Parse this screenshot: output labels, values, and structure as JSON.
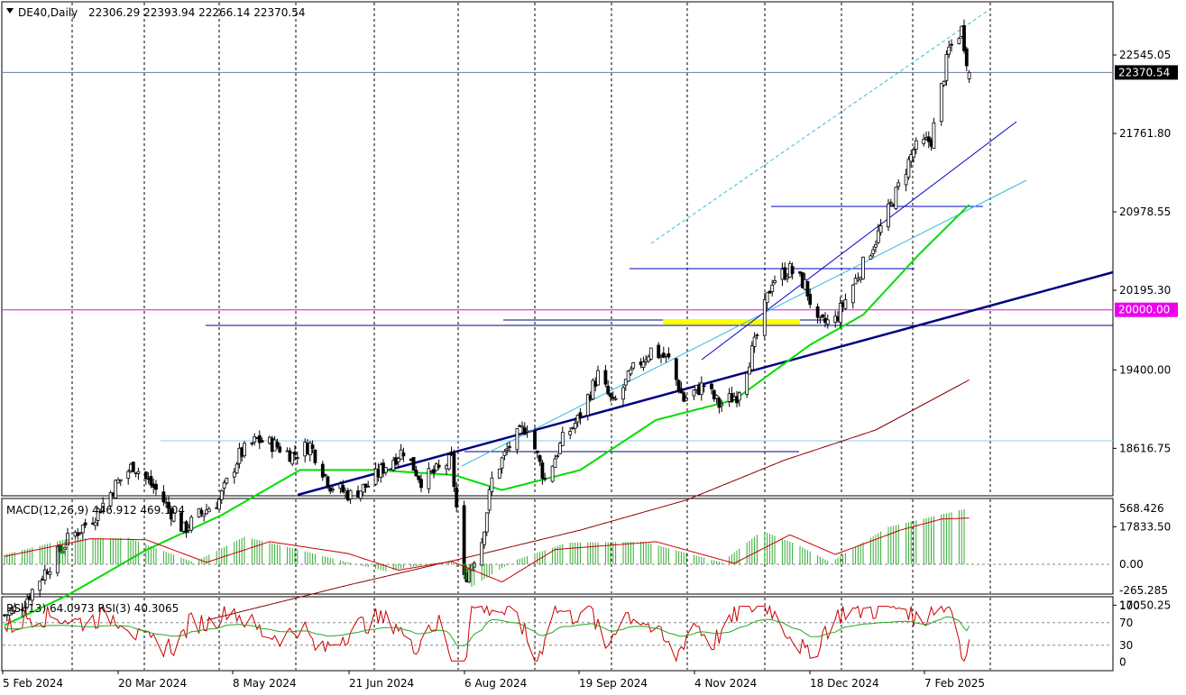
{
  "header": {
    "symbol": "DE40,Daily",
    "ohlc": "22306.29 22393.94 22266.14 22370.54"
  },
  "colors": {
    "background": "#ffffff",
    "candle": "#000000",
    "ma_fast": "#00dd00",
    "ma_slow": "#8b0000",
    "macd_hist": "#33aa33",
    "macd_signal": "#cc0000",
    "rsi_slow": "#22aa22",
    "rsi_fast": "#cc0000",
    "trend_main": "#000080",
    "trend_blue": "#0000cc",
    "trend_cyan": "#33bbdd",
    "level_magenta": "#ee00ee",
    "highlight": "#ffff00",
    "grid": "#000000"
  },
  "chart_data": {
    "type": "candlestick",
    "price_axis": {
      "ticks": [
        "22545.05",
        "21761.80",
        "20978.55",
        "20195.30",
        "19400.00",
        "18616.75",
        "17833.50",
        "17050.25"
      ],
      "current_price_label": "22370.54",
      "level_label": "20000.00"
    },
    "x_axis": {
      "ticks": [
        "5 Feb 2024",
        "20 Mar 2024",
        "8 May 2024",
        "21 Jun 2024",
        "6 Aug 2024",
        "19 Sep 2024",
        "4 Nov 2024",
        "18 Dec 2024",
        "7 Feb 2025"
      ]
    },
    "close_waypoints": [
      [
        "2024-02-05",
        16950
      ],
      [
        "2024-02-12",
        17050
      ],
      [
        "2024-02-20",
        17350
      ],
      [
        "2024-03-01",
        17700
      ],
      [
        "2024-03-12",
        17950
      ],
      [
        "2024-03-20",
        18250
      ],
      [
        "2024-03-27",
        18450
      ],
      [
        "2024-04-05",
        18200
      ],
      [
        "2024-04-16",
        17800
      ],
      [
        "2024-04-22",
        17950
      ],
      [
        "2024-04-30",
        18100
      ],
      [
        "2024-05-08",
        18550
      ],
      [
        "2024-05-15",
        18700
      ],
      [
        "2024-05-22",
        18650
      ],
      [
        "2024-05-29",
        18550
      ],
      [
        "2024-06-05",
        18650
      ],
      [
        "2024-06-13",
        18250
      ],
      [
        "2024-06-21",
        18150
      ],
      [
        "2024-06-28",
        18250
      ],
      [
        "2024-07-05",
        18450
      ],
      [
        "2024-07-12",
        18600
      ],
      [
        "2024-07-19",
        18300
      ],
      [
        "2024-07-26",
        18400
      ],
      [
        "2024-07-31",
        18500
      ],
      [
        "2024-08-05",
        17300
      ],
      [
        "2024-08-12",
        17700
      ],
      [
        "2024-08-16",
        18300
      ],
      [
        "2024-08-23",
        18650
      ],
      [
        "2024-08-30",
        18850
      ],
      [
        "2024-09-06",
        18300
      ],
      [
        "2024-09-13",
        18700
      ],
      [
        "2024-09-19",
        18900
      ],
      [
        "2024-09-27",
        19350
      ],
      [
        "2024-10-03",
        19050
      ],
      [
        "2024-10-11",
        19400
      ],
      [
        "2024-10-18",
        19600
      ],
      [
        "2024-10-25",
        19500
      ],
      [
        "2024-10-31",
        19100
      ],
      [
        "2024-11-08",
        19250
      ],
      [
        "2024-11-14",
        19050
      ],
      [
        "2024-11-21",
        19150
      ],
      [
        "2024-11-28",
        19650
      ],
      [
        "2024-12-05",
        20300
      ],
      [
        "2024-12-12",
        20400
      ],
      [
        "2024-12-18",
        20250
      ],
      [
        "2024-12-23",
        19850
      ],
      [
        "2024-12-30",
        19900
      ],
      [
        "2025-01-07",
        20300
      ],
      [
        "2025-01-15",
        20700
      ],
      [
        "2025-01-22",
        21100
      ],
      [
        "2025-01-30",
        21600
      ],
      [
        "2025-02-06",
        21700
      ],
      [
        "2025-02-13",
        22600
      ],
      [
        "2025-02-18",
        22800
      ],
      [
        "2025-02-21",
        22370
      ]
    ],
    "ma_fast_waypoints": [
      [
        "2024-02-05",
        16850
      ],
      [
        "2024-03-01",
        17150
      ],
      [
        "2024-04-01",
        17600
      ],
      [
        "2024-05-01",
        17950
      ],
      [
        "2024-06-01",
        18400
      ],
      [
        "2024-07-01",
        18400
      ],
      [
        "2024-08-01",
        18350
      ],
      [
        "2024-08-20",
        18200
      ],
      [
        "2024-09-20",
        18400
      ],
      [
        "2024-10-20",
        18900
      ],
      [
        "2024-11-20",
        19100
      ],
      [
        "2024-12-20",
        19650
      ],
      [
        "2025-01-10",
        19950
      ],
      [
        "2025-02-01",
        20550
      ],
      [
        "2025-02-21",
        21050
      ]
    ],
    "ma_slow_waypoints": [
      [
        "2024-04-25",
        16900
      ],
      [
        "2024-06-20",
        17250
      ],
      [
        "2024-08-10",
        17550
      ],
      [
        "2024-09-20",
        17800
      ],
      [
        "2024-11-01",
        18100
      ],
      [
        "2024-12-10",
        18500
      ],
      [
        "2025-01-15",
        18800
      ],
      [
        "2025-02-21",
        19300
      ]
    ],
    "macd": {
      "label": "MACD(12,26,9) 446.912 469.104",
      "ticks": [
        "568.426",
        "0.00",
        "-265.285"
      ],
      "hist_waypoints": [
        [
          "2024-02-05",
          100
        ],
        [
          "2024-03-01",
          260
        ],
        [
          "2024-03-25",
          270
        ],
        [
          "2024-04-20",
          20
        ],
        [
          "2024-05-10",
          280
        ],
        [
          "2024-05-28",
          170
        ],
        [
          "2024-06-20",
          20
        ],
        [
          "2024-07-05",
          -70
        ],
        [
          "2024-07-31",
          40
        ],
        [
          "2024-08-08",
          -230
        ],
        [
          "2024-08-25",
          40
        ],
        [
          "2024-09-15",
          220
        ],
        [
          "2024-10-15",
          230
        ],
        [
          "2024-11-15",
          20
        ],
        [
          "2024-12-01",
          340
        ],
        [
          "2024-12-15",
          200
        ],
        [
          "2024-12-28",
          20
        ],
        [
          "2025-01-20",
          380
        ],
        [
          "2025-02-19",
          560
        ]
      ],
      "signal_waypoints": [
        [
          "2024-02-05",
          80
        ],
        [
          "2024-03-10",
          260
        ],
        [
          "2024-04-01",
          250
        ],
        [
          "2024-04-25",
          20
        ],
        [
          "2024-05-20",
          230
        ],
        [
          "2024-06-20",
          110
        ],
        [
          "2024-07-10",
          -60
        ],
        [
          "2024-07-31",
          30
        ],
        [
          "2024-08-20",
          -180
        ],
        [
          "2024-09-10",
          150
        ],
        [
          "2024-10-20",
          230
        ],
        [
          "2024-11-20",
          10
        ],
        [
          "2024-12-12",
          300
        ],
        [
          "2024-12-30",
          100
        ],
        [
          "2025-01-25",
          350
        ],
        [
          "2025-02-10",
          460
        ],
        [
          "2025-02-21",
          470
        ]
      ]
    },
    "rsi": {
      "label": "RSI(13) 64.0973  RSI(3) 40.3065",
      "ticks": [
        "100",
        "70",
        "30",
        "0"
      ],
      "levels": [
        70,
        30
      ]
    }
  }
}
